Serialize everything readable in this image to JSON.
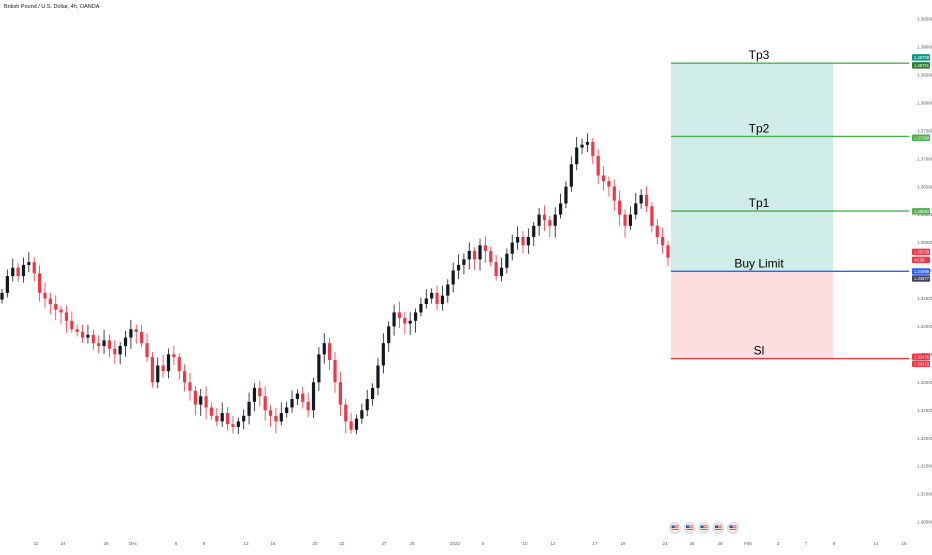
{
  "header": {
    "title": "British Pound / U.S. Dollar, 4h, OANDA"
  },
  "price_axis": {
    "currency": "USD",
    "ticks": [
      "1.39500",
      "1.39000",
      "1.38500",
      "1.38000",
      "1.37500",
      "1.37000",
      "1.36500",
      "1.36000",
      "1.35500",
      "1.35000",
      "1.34500",
      "1.34000",
      "1.33500",
      "1.33000",
      "1.32500",
      "1.32000",
      "1.31500",
      "1.31000",
      "1.30500"
    ]
  },
  "time_axis": {
    "ticks": [
      "22",
      "24",
      "29",
      "Dec",
      "6",
      "8",
      "13",
      "15",
      "20",
      "22",
      "27",
      "29",
      "2022",
      "5",
      "10",
      "12",
      "17",
      "19",
      "24",
      "26",
      "28",
      "Feb",
      "3",
      "7",
      "9",
      "14",
      "16"
    ]
  },
  "price_badges": [
    {
      "text": "1.38709",
      "color": "#089981",
      "role": "tp3-upper"
    },
    {
      "text": "1.38701",
      "color": "#2e7d32",
      "role": "tp3-lower"
    },
    {
      "text": "1.37398",
      "color": "#4caf50",
      "role": "tp2"
    },
    {
      "text": "1.36063",
      "color": "#4caf50",
      "role": "tp1"
    },
    {
      "text": "1.35230",
      "color": "#f23645",
      "role": "last-price"
    },
    {
      "text": "48:58",
      "color": "#f23645",
      "role": "countdown"
    },
    {
      "text": "1.34986",
      "color": "#2962ff",
      "role": "buy-limit"
    },
    {
      "text": "1.34877",
      "color": "#434651",
      "role": "crosshair"
    },
    {
      "text": "1.33435",
      "color": "#f23645",
      "role": "sl-upper"
    },
    {
      "text": "1.33425",
      "color": "#f23645",
      "role": "sl-lower"
    }
  ],
  "levels": [
    {
      "label": "Tp3",
      "color": "#4caf50"
    },
    {
      "label": "Tp2",
      "color": "#4caf50"
    },
    {
      "label": "Tp1",
      "color": "#4caf50"
    },
    {
      "label": "Buy Limit",
      "color": "#2962ff"
    },
    {
      "label": "Sl",
      "color": "#f23645"
    }
  ],
  "event_icons": [
    "flag-us-icon",
    "flag-us-icon",
    "flag-us-icon",
    "flag-us-icon",
    "flag-us-icon"
  ],
  "chart_data": {
    "type": "candlestick",
    "series_name": "",
    "ylim": [
      1.3025,
      1.3975
    ],
    "up_color": "#131722",
    "down_color": "#f23645",
    "x_time_range": [
      "Nov 19, 2021",
      "Jan 24, 2022"
    ],
    "candles_close": [
      1.346,
      1.349,
      1.3505,
      1.349,
      1.351,
      1.3515,
      1.3495,
      1.346,
      1.345,
      1.344,
      1.343,
      1.3425,
      1.341,
      1.3395,
      1.339,
      1.338,
      1.3385,
      1.337,
      1.3365,
      1.3375,
      1.336,
      1.335,
      1.3365,
      1.338,
      1.3395,
      1.339,
      1.337,
      1.3345,
      1.33,
      1.333,
      1.332,
      1.335,
      1.3345,
      1.332,
      1.33,
      1.3285,
      1.326,
      1.3275,
      1.3255,
      1.324,
      1.323,
      1.3245,
      1.3225,
      1.322,
      1.323,
      1.324,
      1.3265,
      1.329,
      1.3275,
      1.325,
      1.324,
      1.323,
      1.3245,
      1.3255,
      1.327,
      1.328,
      1.3265,
      1.325,
      1.33,
      1.335,
      1.337,
      1.334,
      1.33,
      1.326,
      1.323,
      1.3215,
      1.3235,
      1.325,
      1.327,
      1.329,
      1.333,
      1.337,
      1.34,
      1.3425,
      1.3415,
      1.3405,
      1.341,
      1.3425,
      1.344,
      1.345,
      1.346,
      1.344,
      1.3455,
      1.3475,
      1.35,
      1.351,
      1.352,
      1.3535,
      1.352,
      1.3545,
      1.3535,
      1.3515,
      1.349,
      1.3505,
      1.353,
      1.355,
      1.356,
      1.3545,
      1.356,
      1.358,
      1.36,
      1.359,
      1.358,
      1.36,
      1.362,
      1.365,
      1.369,
      1.372,
      1.3725,
      1.373,
      1.3705,
      1.367,
      1.366,
      1.365,
      1.3625,
      1.36,
      1.358,
      1.36,
      1.362,
      1.3635,
      1.3615,
      1.358,
      1.356,
      1.3545,
      1.3523
    ],
    "levels": [
      {
        "label": "Tp3",
        "price": 1.38709
      },
      {
        "label": "Tp2",
        "price": 1.37398
      },
      {
        "label": "Tp1",
        "price": 1.36063
      },
      {
        "label": "Buy Limit",
        "price": 1.34986
      },
      {
        "label": "Sl",
        "price": 1.33425
      }
    ],
    "profit_zone": {
      "from": 1.34986,
      "to": 1.38709,
      "color": "#cfece8"
    },
    "loss_zone": {
      "from": 1.33425,
      "to": 1.34986,
      "color": "#fcdede"
    }
  }
}
